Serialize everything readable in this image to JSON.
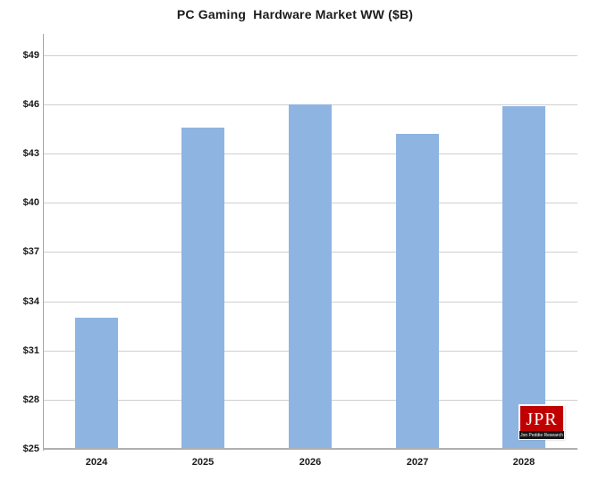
{
  "chart_data": {
    "type": "bar",
    "title": "PC Gaming  Hardware Market WW ($B)",
    "categories": [
      "2024",
      "2025",
      "2026",
      "2027",
      "2028"
    ],
    "values": [
      33.0,
      44.6,
      46.0,
      44.2,
      45.9
    ],
    "xlabel": "",
    "ylabel": "",
    "ylim": [
      25,
      50.3
    ],
    "yticks": [
      25,
      28,
      31,
      34,
      37,
      40,
      43,
      46,
      49
    ],
    "ytick_labels": [
      "$25",
      "$28",
      "$31",
      "$34",
      "$37",
      "$40",
      "$43",
      "$46",
      "$49"
    ],
    "grid": true,
    "legend": false,
    "bar_color": "#8EB4E2",
    "gridline_color": "#CFCFCF",
    "axis_line_color": "#A6A6A6",
    "text_color": "#1A1A1A"
  },
  "logo": {
    "acronym": "JPR",
    "full_name": "Jon Peddie Research",
    "box_color": "#C00000",
    "strip_color": "#151515"
  }
}
